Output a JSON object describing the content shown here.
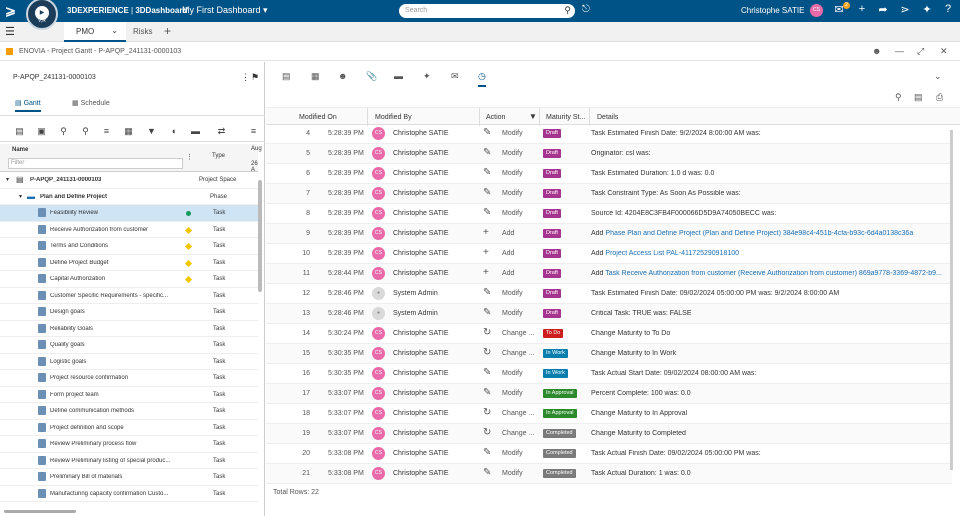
{
  "topbar": {
    "app": "3DEXPERIENCE",
    "sep": " | ",
    "app2": "3DDashboard",
    "dashboard": "My First Dashboard",
    "search_placeholder": "Search",
    "user": "Christophe SATIE",
    "user_initials": "CS",
    "compass_version": "V,R",
    "notifications": "2"
  },
  "tabs": {
    "active": "PMO",
    "second": "Risks"
  },
  "breadcrumb": "ENOVIA - Project Gantt - P-APQP_241131-0000103",
  "left": {
    "project_title": "P-APQP_241131-0000103",
    "tab_gantt": "Gantt",
    "tab_schedule": "Schedule",
    "col_name": "Name",
    "col_type": "Type",
    "col_aug": "Aug",
    "col_aug2": "26 A",
    "filter_placeholder": "Filter",
    "rows": [
      {
        "name": "P-APQP_241131-0000103",
        "type": "Project Space",
        "level": 0,
        "bold": true,
        "status": ""
      },
      {
        "name": "Plan and Define Project",
        "type": "Phase",
        "level": 1,
        "bold": true,
        "status": ""
      },
      {
        "name": "Feasibility Review",
        "type": "Task",
        "level": 2,
        "bold": false,
        "status": "green",
        "selected": true
      },
      {
        "name": "Receive Authorization from customer",
        "type": "Task",
        "level": 2,
        "bold": false,
        "status": "yellow"
      },
      {
        "name": "Terms and Conditions",
        "type": "Task",
        "level": 2,
        "bold": false,
        "status": "yellow"
      },
      {
        "name": "Define Project Budget",
        "type": "Task",
        "level": 2,
        "bold": false,
        "status": "yellow"
      },
      {
        "name": "Capital Authorization",
        "type": "Task",
        "level": 2,
        "bold": false,
        "status": "yellow"
      },
      {
        "name": "Customer Specific Requirements - specific...",
        "type": "Task",
        "level": 2,
        "bold": false,
        "status": ""
      },
      {
        "name": "Design goals",
        "type": "Task",
        "level": 2,
        "bold": false,
        "status": ""
      },
      {
        "name": "Reliability Goals",
        "type": "Task",
        "level": 2,
        "bold": false,
        "status": ""
      },
      {
        "name": "Quality goals",
        "type": "Task",
        "level": 2,
        "bold": false,
        "status": ""
      },
      {
        "name": "Logistic goals",
        "type": "Task",
        "level": 2,
        "bold": false,
        "status": ""
      },
      {
        "name": "Project resource confirmation",
        "type": "Task",
        "level": 2,
        "bold": false,
        "status": ""
      },
      {
        "name": "Form project team",
        "type": "Task",
        "level": 2,
        "bold": false,
        "status": ""
      },
      {
        "name": "Define communication methods",
        "type": "Task",
        "level": 2,
        "bold": false,
        "status": ""
      },
      {
        "name": "Project definition and scope",
        "type": "Task",
        "level": 2,
        "bold": false,
        "status": ""
      },
      {
        "name": "Review Preliminary process flow",
        "type": "Task",
        "level": 2,
        "bold": false,
        "status": ""
      },
      {
        "name": "Review Preliminary listing of special produc...",
        "type": "Task",
        "level": 2,
        "bold": false,
        "status": ""
      },
      {
        "name": "Preliminary Bill of materials",
        "type": "Task",
        "level": 2,
        "bold": false,
        "status": ""
      },
      {
        "name": "Manufacturing capacity confirmation Custo...",
        "type": "Task",
        "level": 2,
        "bold": false,
        "status": ""
      }
    ]
  },
  "right": {
    "headers": {
      "modified_on": "Modified On",
      "modified_by": "Modified By",
      "action": "Action",
      "maturity": "Maturity St...",
      "details": "Details"
    },
    "rows": [
      {
        "n": "4",
        "time": "5:28:39 PM",
        "by": "Christophe SATIE",
        "sys": false,
        "action": "Modify",
        "icon": "edit",
        "maturity": "Draft",
        "mcolor": "#a5348f",
        "detail": "Task Estimated Finish Date: 9/2/2024 8:00:00 AM was:",
        "link": ""
      },
      {
        "n": "5",
        "time": "5:28:39 PM",
        "by": "Christophe SATIE",
        "sys": false,
        "action": "Modify",
        "icon": "edit",
        "maturity": "Draft",
        "mcolor": "#a5348f",
        "detail": "Originator: csl was:",
        "link": ""
      },
      {
        "n": "6",
        "time": "5:28:39 PM",
        "by": "Christophe SATIE",
        "sys": false,
        "action": "Modify",
        "icon": "edit",
        "maturity": "Draft",
        "mcolor": "#a5348f",
        "detail": "Task Estimated Duration: 1.0 d was: 0.0",
        "link": ""
      },
      {
        "n": "7",
        "time": "5:28:39 PM",
        "by": "Christophe SATIE",
        "sys": false,
        "action": "Modify",
        "icon": "edit",
        "maturity": "Draft",
        "mcolor": "#a5348f",
        "detail": "Task Constraint Type: As Soon As Possible was:",
        "link": ""
      },
      {
        "n": "8",
        "time": "5:28:39 PM",
        "by": "Christophe SATIE",
        "sys": false,
        "action": "Modify",
        "icon": "edit",
        "maturity": "Draft",
        "mcolor": "#a5348f",
        "detail": "Source Id: 4204E8C3FB4F000066D5D9A74050BECC was:",
        "link": ""
      },
      {
        "n": "9",
        "time": "5:28:39 PM",
        "by": "Christophe SATIE",
        "sys": false,
        "action": "Add",
        "icon": "add",
        "maturity": "Draft",
        "mcolor": "#a5348f",
        "detail": "Add ",
        "link": "Phase Plan and Define Project (Plan and Define Project) 384e98c4-451b-4cfa-b93c-6d4a0138c36a"
      },
      {
        "n": "10",
        "time": "5:28:39 PM",
        "by": "Christophe SATIE",
        "sys": false,
        "action": "Add",
        "icon": "add",
        "maturity": "Draft",
        "mcolor": "#a5348f",
        "detail": "Add ",
        "link": "Project Access List PAL-411725290918100"
      },
      {
        "n": "11",
        "time": "5:28:44 PM",
        "by": "Christophe SATIE",
        "sys": false,
        "action": "Add",
        "icon": "add",
        "maturity": "Draft",
        "mcolor": "#a5348f",
        "detail": "Add ",
        "link": "Task Receive Authorization from customer (Receive Authorization from customer) 869a9778-3369-4872-b9..."
      },
      {
        "n": "12",
        "time": "5:28:46 PM",
        "by": "System Admin",
        "sys": true,
        "action": "Modify",
        "icon": "edit",
        "maturity": "Draft",
        "mcolor": "#a5348f",
        "detail": "Task Estimated Finish Date: 09/02/2024 05:00:00 PM was: 9/2/2024 8:00:00 AM",
        "link": ""
      },
      {
        "n": "13",
        "time": "5:28:46 PM",
        "by": "System Admin",
        "sys": true,
        "action": "Modify",
        "icon": "edit",
        "maturity": "Draft",
        "mcolor": "#a5348f",
        "detail": "Critical Task: TRUE was: FALSE",
        "link": ""
      },
      {
        "n": "14",
        "time": "5:30:24 PM",
        "by": "Christophe SATIE",
        "sys": false,
        "action": "Change ...",
        "icon": "change",
        "maturity": "To Do",
        "mcolor": "#cc1e1e",
        "detail": "Change Maturity to To Do",
        "link": ""
      },
      {
        "n": "15",
        "time": "5:30:35 PM",
        "by": "Christophe SATIE",
        "sys": false,
        "action": "Change ...",
        "icon": "change",
        "maturity": "In Work",
        "mcolor": "#0a7fae",
        "detail": "Change Maturity to In Work",
        "link": ""
      },
      {
        "n": "16",
        "time": "5:30:35 PM",
        "by": "Christophe SATIE",
        "sys": false,
        "action": "Modify",
        "icon": "edit",
        "maturity": "In Work",
        "mcolor": "#0a7fae",
        "detail": "Task Actual Start Date: 09/02/2024 08:00:00 AM was:",
        "link": ""
      },
      {
        "n": "17",
        "time": "5:33:07 PM",
        "by": "Christophe SATIE",
        "sys": false,
        "action": "Modify",
        "icon": "edit",
        "maturity": "In Approval",
        "mcolor": "#2c8a2c",
        "detail": "Percent Complete: 100 was: 0.0",
        "link": ""
      },
      {
        "n": "18",
        "time": "5:33:07 PM",
        "by": "Christophe SATIE",
        "sys": false,
        "action": "Change ...",
        "icon": "change",
        "maturity": "In Approval",
        "mcolor": "#2c8a2c",
        "detail": "Change Maturity to In Approval",
        "link": ""
      },
      {
        "n": "19",
        "time": "5:33:07 PM",
        "by": "Christophe SATIE",
        "sys": false,
        "action": "Change ...",
        "icon": "change",
        "maturity": "Completed",
        "mcolor": "#7a7a7a",
        "detail": "Change Maturity to Completed",
        "link": ""
      },
      {
        "n": "20",
        "time": "5:33:08 PM",
        "by": "Christophe SATIE",
        "sys": false,
        "action": "Modify",
        "icon": "edit",
        "maturity": "Completed",
        "mcolor": "#7a7a7a",
        "detail": "Task Actual Finish Date: 09/02/2024 05:00:00 PM was:",
        "link": ""
      },
      {
        "n": "21",
        "time": "5:33:08 PM",
        "by": "Christophe SATIE",
        "sys": false,
        "action": "Modify",
        "icon": "edit",
        "maturity": "Completed",
        "mcolor": "#7a7a7a",
        "detail": "Task Actual Duration: 1 was: 0.0",
        "link": ""
      }
    ],
    "total_rows": "Total Rows: 22"
  }
}
